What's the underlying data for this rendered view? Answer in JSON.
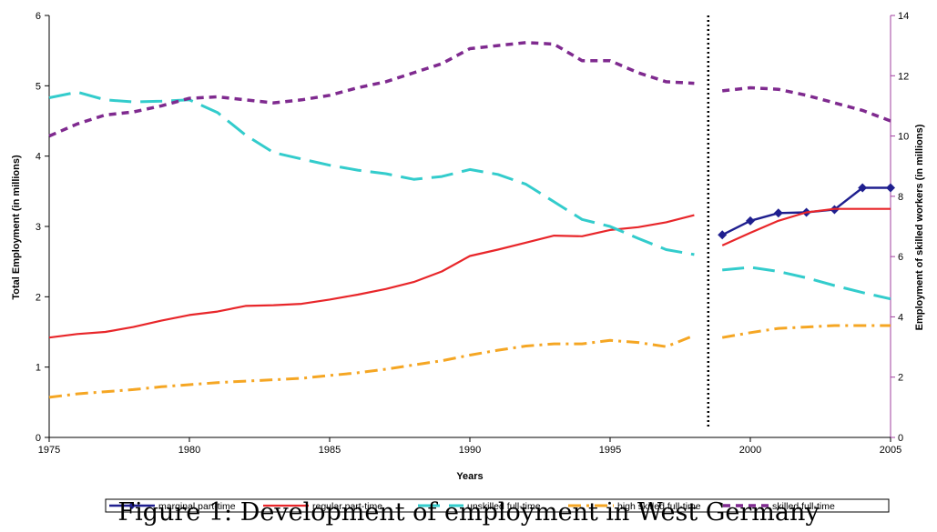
{
  "caption": "Figure 1: Development of employment in West Germany",
  "chart_data": {
    "type": "line",
    "title": "",
    "xlabel": "Years",
    "ylabel_left": "Total Employment (in millions)",
    "ylabel_right": "Employment of skilled workers (in millions)",
    "xlim": [
      1975,
      2005
    ],
    "ylim_left": [
      0,
      6
    ],
    "ylim_right": [
      0,
      14
    ],
    "x_ticks": [
      1975,
      1980,
      1985,
      1990,
      1995,
      2000,
      2005
    ],
    "y_ticks_left": [
      0,
      1,
      2,
      3,
      4,
      5,
      6
    ],
    "y_ticks_right": [
      0,
      2,
      4,
      6,
      8,
      10,
      12,
      14
    ],
    "grid": false,
    "legend_position": "bottom",
    "break_year": 1998.5,
    "series": [
      {
        "name": "marginal part-time",
        "axis": "left",
        "color": "#1f1f8f",
        "style": "solid-marker",
        "segments": [
          [
            [
              1999,
              2.88
            ],
            [
              2000,
              3.08
            ],
            [
              2001,
              3.19
            ],
            [
              2002,
              3.2
            ],
            [
              2003,
              3.24
            ],
            [
              2004,
              3.55
            ],
            [
              2005,
              3.55
            ]
          ]
        ]
      },
      {
        "name": "regular part-time",
        "axis": "left",
        "color": "#e8262a",
        "style": "solid",
        "segments": [
          [
            [
              1975,
              1.42
            ],
            [
              1976,
              1.47
            ],
            [
              1977,
              1.5
            ],
            [
              1978,
              1.57
            ],
            [
              1979,
              1.66
            ],
            [
              1980,
              1.74
            ],
            [
              1981,
              1.79
            ],
            [
              1982,
              1.87
            ],
            [
              1983,
              1.88
            ],
            [
              1984,
              1.9
            ],
            [
              1985,
              1.96
            ],
            [
              1986,
              2.03
            ],
            [
              1987,
              2.11
            ],
            [
              1988,
              2.21
            ],
            [
              1989,
              2.36
            ],
            [
              1990,
              2.58
            ],
            [
              1991,
              2.67
            ],
            [
              1992,
              2.77
            ],
            [
              1993,
              2.87
            ],
            [
              1994,
              2.86
            ],
            [
              1995,
              2.95
            ],
            [
              1996,
              2.99
            ],
            [
              1997,
              3.06
            ],
            [
              1998,
              3.16
            ]
          ],
          [
            [
              1999,
              2.73
            ],
            [
              2000,
              2.91
            ],
            [
              2001,
              3.08
            ],
            [
              2002,
              3.2
            ],
            [
              2003,
              3.25
            ],
            [
              2004,
              3.25
            ],
            [
              2005,
              3.25
            ]
          ]
        ]
      },
      {
        "name": "unskilled full-time",
        "axis": "left",
        "color": "#33cccc",
        "style": "longdash",
        "segments": [
          [
            [
              1975,
              4.83
            ],
            [
              1976,
              4.91
            ],
            [
              1977,
              4.8
            ],
            [
              1978,
              4.77
            ],
            [
              1979,
              4.78
            ],
            [
              1980,
              4.8
            ],
            [
              1981,
              4.62
            ],
            [
              1982,
              4.3
            ],
            [
              1983,
              4.05
            ],
            [
              1984,
              3.96
            ],
            [
              1985,
              3.87
            ],
            [
              1986,
              3.8
            ],
            [
              1987,
              3.75
            ],
            [
              1988,
              3.67
            ],
            [
              1989,
              3.71
            ],
            [
              1990,
              3.81
            ],
            [
              1991,
              3.74
            ],
            [
              1992,
              3.6
            ],
            [
              1993,
              3.35
            ],
            [
              1994,
              3.1
            ],
            [
              1995,
              3.0
            ],
            [
              1996,
              2.83
            ],
            [
              1997,
              2.67
            ],
            [
              1998,
              2.6
            ]
          ],
          [
            [
              1999,
              2.38
            ],
            [
              2000,
              2.42
            ],
            [
              2001,
              2.36
            ],
            [
              2002,
              2.27
            ],
            [
              2003,
              2.16
            ],
            [
              2004,
              2.06
            ],
            [
              2005,
              1.97
            ]
          ]
        ]
      },
      {
        "name": "high skilled full-time",
        "axis": "left",
        "color": "#f5a623",
        "style": "dashdot",
        "segments": [
          [
            [
              1975,
              0.57
            ],
            [
              1976,
              0.62
            ],
            [
              1977,
              0.65
            ],
            [
              1978,
              0.68
            ],
            [
              1979,
              0.72
            ],
            [
              1980,
              0.75
            ],
            [
              1981,
              0.78
            ],
            [
              1982,
              0.8
            ],
            [
              1983,
              0.82
            ],
            [
              1984,
              0.84
            ],
            [
              1985,
              0.88
            ],
            [
              1986,
              0.92
            ],
            [
              1987,
              0.97
            ],
            [
              1988,
              1.03
            ],
            [
              1989,
              1.09
            ],
            [
              1990,
              1.17
            ],
            [
              1991,
              1.24
            ],
            [
              1992,
              1.3
            ],
            [
              1993,
              1.33
            ],
            [
              1994,
              1.33
            ],
            [
              1995,
              1.38
            ],
            [
              1996,
              1.35
            ],
            [
              1997,
              1.29
            ],
            [
              1998,
              1.45
            ]
          ],
          [
            [
              1999,
              1.42
            ],
            [
              2000,
              1.49
            ],
            [
              2001,
              1.55
            ],
            [
              2002,
              1.57
            ],
            [
              2003,
              1.59
            ],
            [
              2004,
              1.59
            ],
            [
              2005,
              1.59
            ]
          ]
        ]
      },
      {
        "name": "skilled full-time",
        "axis": "right",
        "color": "#7f2a8f",
        "style": "shortdash",
        "segments": [
          [
            [
              1975,
              10.0
            ],
            [
              1976,
              10.4
            ],
            [
              1977,
              10.7
            ],
            [
              1978,
              10.8
            ],
            [
              1979,
              11.0
            ],
            [
              1980,
              11.25
            ],
            [
              1981,
              11.3
            ],
            [
              1982,
              11.2
            ],
            [
              1983,
              11.1
            ],
            [
              1984,
              11.2
            ],
            [
              1985,
              11.35
            ],
            [
              1986,
              11.6
            ],
            [
              1987,
              11.8
            ],
            [
              1988,
              12.1
            ],
            [
              1989,
              12.4
            ],
            [
              1990,
              12.9
            ],
            [
              1991,
              13.0
            ],
            [
              1992,
              13.1
            ],
            [
              1993,
              13.05
            ],
            [
              1994,
              12.5
            ],
            [
              1995,
              12.5
            ],
            [
              1996,
              12.1
            ],
            [
              1997,
              11.8
            ],
            [
              1998,
              11.75
            ]
          ],
          [
            [
              1999,
              11.5
            ],
            [
              2000,
              11.6
            ],
            [
              2001,
              11.55
            ],
            [
              2002,
              11.35
            ],
            [
              2003,
              11.1
            ],
            [
              2004,
              10.85
            ],
            [
              2005,
              10.5
            ]
          ]
        ]
      }
    ]
  }
}
